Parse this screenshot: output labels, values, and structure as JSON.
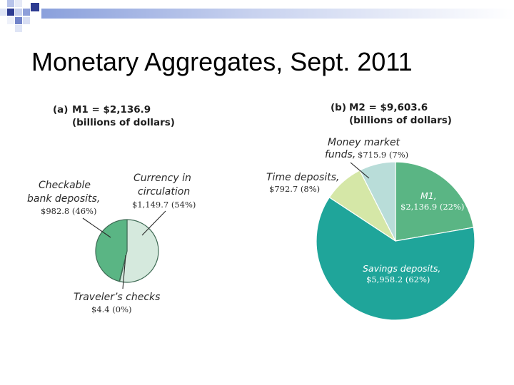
{
  "slide": {
    "title": "Monetary Aggregates, Sept. 2011"
  },
  "chart_data": [
    {
      "type": "pie",
      "panel": "(a)",
      "title": "M1 = $2,136.9",
      "subtitle": "(billions of dollars)",
      "total": 2136.9,
      "slices": [
        {
          "label": "Currency in circulation",
          "label_lines": [
            "Currency in",
            "circulation"
          ],
          "value": 1149.7,
          "value_text": "$1,149.7 (54%)",
          "percent": 54,
          "color": "#d5e9dd"
        },
        {
          "label": "Traveler's checks",
          "label_lines": [
            "Traveler’s checks"
          ],
          "value": 4.4,
          "value_text": "$4.4 (0%)",
          "percent": 0,
          "color": "#f3e6b3"
        },
        {
          "label": "Checkable bank deposits",
          "label_lines": [
            "Checkable",
            "bank deposits,"
          ],
          "value": 982.8,
          "value_text": "$982.8 (46%)",
          "percent": 46,
          "color": "#5ab584"
        }
      ]
    },
    {
      "type": "pie",
      "panel": "(b)",
      "title": "M2 = $9,603.6",
      "subtitle": "(billions of dollars)",
      "total": 9603.6,
      "slices": [
        {
          "label": "M1",
          "label_lines": [
            "M1,"
          ],
          "value": 2136.9,
          "value_text": "$2,136.9 (22%)",
          "percent": 22,
          "color": "#5ab584"
        },
        {
          "label": "Savings deposits",
          "label_lines": [
            "Savings deposits,"
          ],
          "value": 5958.2,
          "value_text": "$5,958.2 (62%)",
          "percent": 62,
          "color": "#1fa59a"
        },
        {
          "label": "Time deposits",
          "label_lines": [
            "Time deposits,"
          ],
          "value": 792.7,
          "value_text": "$792.7 (8%)",
          "percent": 8,
          "color": "#d5e7a7"
        },
        {
          "label": "Money market funds",
          "label_lines": [
            "Money market",
            "funds,"
          ],
          "value": 715.9,
          "value_text": "$715.9 (7%)",
          "percent": 7,
          "color": "#b9ddd9"
        }
      ]
    }
  ]
}
